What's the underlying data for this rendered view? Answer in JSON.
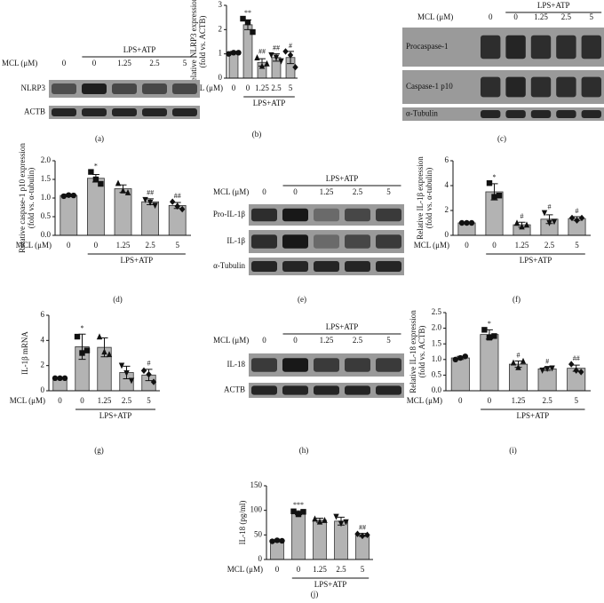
{
  "chart_data": [
    {
      "type": "bar",
      "panel_label": "(b)",
      "y_label": [
        "Relative NLRP3 expression",
        "(fold vs. ACTB)"
      ],
      "x_label": "MCL (μM)",
      "group_label": "LPS+ATP",
      "categories": [
        "0",
        "0",
        "1.25",
        "2.5",
        "5"
      ],
      "values": [
        1.05,
        2.2,
        0.65,
        0.85,
        0.85
      ],
      "errors": [
        0.05,
        0.2,
        0.15,
        0.15,
        0.25
      ],
      "points": [
        [
          1.0,
          1.05,
          1.05
        ],
        [
          2.45,
          2.3,
          1.9
        ],
        [
          0.85,
          0.5,
          0.6
        ],
        [
          0.95,
          0.85,
          0.7
        ],
        [
          1.1,
          0.95,
          0.45
        ]
      ],
      "significance": [
        null,
        "**",
        "##",
        "##",
        "#"
      ],
      "markers": [
        "circle",
        "square",
        "triangle",
        "triangle-down",
        "diamond"
      ],
      "color": "#b3b3b3",
      "ylim": [
        0,
        3
      ],
      "yticks": [
        0,
        1,
        2,
        3
      ]
    },
    {
      "type": "bar",
      "panel_label": "(d)",
      "y_label": [
        "Relative caspase-1 p10 expression",
        "(fold vs. α-tubulin)"
      ],
      "x_label": "MCL (μM)",
      "group_label": "LPS+ATP",
      "categories": [
        "0",
        "0",
        "1.25",
        "2.5",
        "5"
      ],
      "values": [
        1.07,
        1.53,
        1.25,
        0.9,
        0.8
      ],
      "errors": [
        0.03,
        0.1,
        0.1,
        0.08,
        0.08
      ],
      "points": [
        [
          1.05,
          1.08,
          1.07
        ],
        [
          1.7,
          1.5,
          1.38
        ],
        [
          1.4,
          1.2,
          1.15
        ],
        [
          0.95,
          0.88,
          0.8
        ],
        [
          0.9,
          0.78,
          0.7
        ]
      ],
      "significance": [
        null,
        "*",
        null,
        "##",
        "##"
      ],
      "markers": [
        "circle",
        "square",
        "triangle",
        "triangle-down",
        "diamond"
      ],
      "color": "#b3b3b3",
      "ylim": [
        0,
        2
      ],
      "yticks": [
        {
          "value": 0,
          "label": "0.0"
        },
        {
          "value": 0.5,
          "label": "0.5"
        },
        {
          "value": 1,
          "label": "1.0"
        },
        {
          "value": 1.5,
          "label": "1.5"
        },
        {
          "value": 2,
          "label": "2.0"
        }
      ]
    },
    {
      "type": "bar",
      "panel_label": "(f)",
      "y_label": [
        "Relative IL-1β expression",
        "(fold vs. α-tubulin)"
      ],
      "x_label": "MCL (μM)",
      "group_label": "LPS+ATP",
      "categories": [
        "0",
        "0",
        "1.25",
        "2.5",
        "5"
      ],
      "values": [
        1.0,
        3.5,
        0.85,
        1.3,
        1.35
      ],
      "errors": [
        0.02,
        0.65,
        0.2,
        0.35,
        0.15
      ],
      "points": [
        [
          1,
          1,
          1
        ],
        [
          4.2,
          3.1,
          3.2
        ],
        [
          1.0,
          0.7,
          0.85
        ],
        [
          1.8,
          1.0,
          1.1
        ],
        [
          1.4,
          1.2,
          1.4
        ]
      ],
      "significance": [
        null,
        "*",
        "#",
        "#",
        "#"
      ],
      "markers": [
        "circle",
        "square",
        "triangle",
        "triangle-down",
        "diamond"
      ],
      "color": "#b3b3b3",
      "ylim": [
        0,
        6
      ],
      "yticks": [
        0,
        2,
        4,
        6
      ]
    },
    {
      "type": "bar",
      "panel_label": "(g)",
      "y_label": [
        "IL-1β mRNA"
      ],
      "x_label": "MCL (μM)",
      "group_label": "LPS+ATP",
      "categories": [
        "0",
        "0",
        "1.25",
        "2.5",
        "5"
      ],
      "values": [
        1.0,
        3.5,
        3.45,
        1.45,
        1.25
      ],
      "errors": [
        0.05,
        1.0,
        0.75,
        0.5,
        0.45
      ],
      "points": [
        [
          1,
          1,
          1
        ],
        [
          4.3,
          3.0,
          3.2
        ],
        [
          4.3,
          3.1,
          2.9
        ],
        [
          2.0,
          1.4,
          0.8
        ],
        [
          1.6,
          1.3,
          0.7
        ]
      ],
      "significance": [
        null,
        "*",
        null,
        null,
        "#"
      ],
      "markers": [
        "circle",
        "square",
        "triangle",
        "triangle-down",
        "diamond"
      ],
      "color": "#b3b3b3",
      "ylim": [
        0,
        6
      ],
      "yticks": [
        0,
        2,
        4,
        6
      ]
    },
    {
      "type": "bar",
      "panel_label": "(i)",
      "y_label": [
        "Relative IL-18 expression",
        "(fold vs. ACTB)"
      ],
      "x_label": "MCL (μM)",
      "group_label": "LPS+ATP",
      "categories": [
        "0",
        "0",
        "1.25",
        "2.5",
        "5"
      ],
      "values": [
        1.05,
        1.8,
        0.85,
        0.7,
        0.72
      ],
      "errors": [
        0.05,
        0.15,
        0.1,
        0.05,
        0.1
      ],
      "points": [
        [
          1.0,
          1.05,
          1.1
        ],
        [
          1.95,
          1.7,
          1.75
        ],
        [
          0.9,
          0.75,
          0.95
        ],
        [
          0.65,
          0.7,
          0.72
        ],
        [
          0.85,
          0.65,
          0.6
        ]
      ],
      "significance": [
        null,
        "*",
        "#",
        "#",
        "##"
      ],
      "markers": [
        "circle",
        "square",
        "triangle",
        "triangle-down",
        "diamond"
      ],
      "color": "#b3b3b3",
      "ylim": [
        0,
        2.5
      ],
      "yticks": [
        {
          "value": 0,
          "label": "0.0"
        },
        {
          "value": 0.5,
          "label": "0.5"
        },
        {
          "value": 1,
          "label": "1.0"
        },
        {
          "value": 1.5,
          "label": "1.5"
        },
        {
          "value": 2,
          "label": "2.0"
        },
        {
          "value": 2.5,
          "label": "2.5"
        }
      ]
    },
    {
      "type": "bar",
      "panel_label": "(j)",
      "y_label": [
        "IL-18 (pg/ml)"
      ],
      "x_label": "MCL (μM)",
      "group_label": "LPS+ATP",
      "categories": [
        "0",
        "0",
        "1.25",
        "2.5",
        "5"
      ],
      "values": [
        38,
        95,
        80,
        78,
        50
      ],
      "errors": [
        2,
        4,
        4,
        8,
        3
      ],
      "points": [
        [
          37,
          39,
          38
        ],
        [
          98,
          92,
          97
        ],
        [
          83,
          77,
          80
        ],
        [
          87,
          73,
          76
        ],
        [
          52,
          48,
          50
        ]
      ],
      "significance": [
        null,
        "***",
        null,
        null,
        "##"
      ],
      "markers": [
        "circle",
        "square",
        "triangle",
        "triangle-down",
        "diamond"
      ],
      "color": "#b3b3b3",
      "ylim": [
        0,
        150
      ],
      "yticks": [
        0,
        50,
        100,
        150
      ]
    }
  ],
  "blots": [
    {
      "panel_label": "(a)",
      "x_label": "MCL (μM)",
      "group_label": "LPS+ATP",
      "lanes": [
        "0",
        "0",
        "1.25",
        "2.5",
        "5"
      ],
      "rows": [
        "NLRP3",
        "ACTB"
      ]
    },
    {
      "panel_label": "(c)",
      "x_label": "MCL (μM)",
      "group_label": "LPS+ATP",
      "lanes": [
        "0",
        "0",
        "1.25",
        "2.5",
        "5"
      ],
      "rows": [
        "Procaspase-1",
        "Caspase-1 p10",
        "α-Tubulin"
      ]
    },
    {
      "panel_label": "(e)",
      "x_label": "MCL (μM)",
      "group_label": "LPS+ATP",
      "lanes": [
        "0",
        "0",
        "1.25",
        "2.5",
        "5"
      ],
      "rows": [
        "Pro-IL-1β",
        "IL-1β",
        "α-Tubulin"
      ]
    },
    {
      "panel_label": "(h)",
      "x_label": "MCL (μM)",
      "group_label": "LPS+ATP",
      "lanes": [
        "0",
        "0",
        "1.25",
        "2.5",
        "5"
      ],
      "rows": [
        "IL-18",
        "ACTB"
      ]
    }
  ]
}
